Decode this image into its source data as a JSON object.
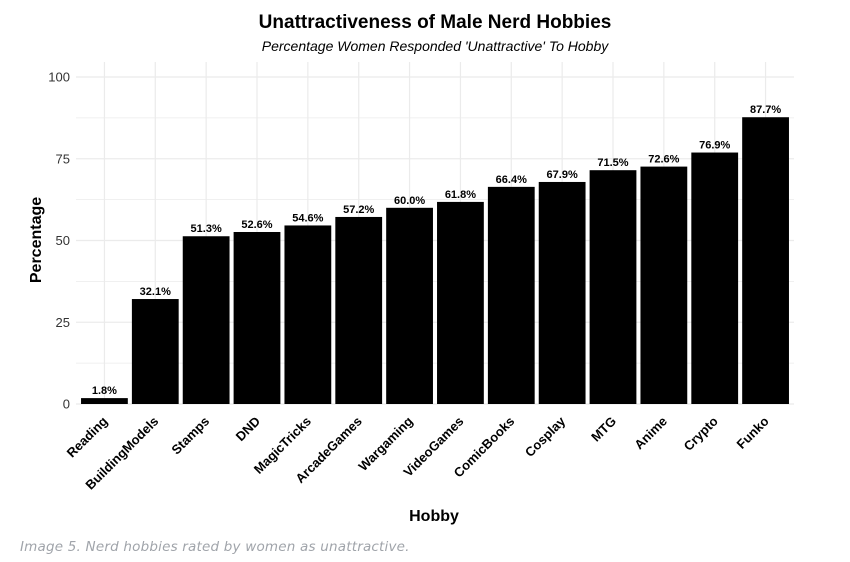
{
  "chart_data": {
    "type": "bar",
    "title": "Unattractiveness of Male Nerd Hobbies",
    "subtitle": "Percentage Women Responded 'Unattractive' To Hobby",
    "xlabel": "Hobby",
    "ylabel": "Percentage",
    "ylim": [
      0,
      100
    ],
    "yticks": [
      0,
      25,
      50,
      75,
      100
    ],
    "grid": true,
    "categories": [
      "Reading",
      "BuildingModels",
      "Stamps",
      "DND",
      "MagicTricks",
      "ArcadeGames",
      "Wargaming",
      "VideoGames",
      "ComicBooks",
      "Cosplay",
      "MTG",
      "Anime",
      "Crypto",
      "Funko"
    ],
    "values": [
      1.8,
      32.1,
      51.3,
      52.6,
      54.6,
      57.2,
      60.0,
      61.8,
      66.4,
      67.9,
      71.5,
      72.6,
      76.9,
      87.7
    ],
    "data_labels": [
      "1.8%",
      "32.1%",
      "51.3%",
      "52.6%",
      "54.6%",
      "57.2%",
      "60.0%",
      "61.8%",
      "66.4%",
      "67.9%",
      "71.5%",
      "72.6%",
      "76.9%",
      "87.7%"
    ],
    "bar_color": "#000000",
    "grid_color": "#ebebeb"
  },
  "caption": "Image 5. Nerd hobbies rated by women as unattractive."
}
